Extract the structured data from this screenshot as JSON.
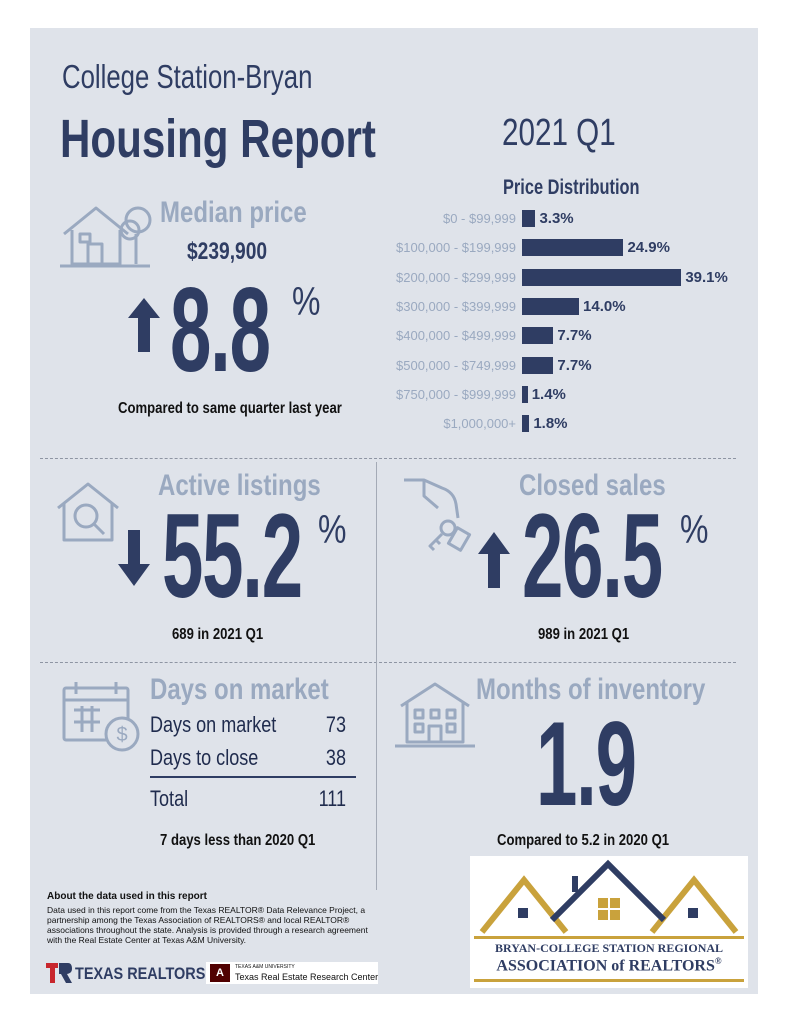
{
  "header": {
    "subtitle": "College Station-Bryan",
    "title": "Housing Report",
    "period": "2021 Q1"
  },
  "median_price": {
    "heading": "Median price",
    "value": "$239,900",
    "direction": "up",
    "change": "8.8",
    "unit": "%",
    "caption": "Compared to same quarter last year"
  },
  "chart_data": {
    "type": "bar",
    "title": "Price Distribution",
    "orientation": "horizontal",
    "categories": [
      "$0 - $99,999",
      "$100,000 - $199,999",
      "$200,000 - $299,999",
      "$300,000 - $399,999",
      "$400,000 - $499,999",
      "$500,000 - $749,999",
      "$750,000 - $999,999",
      "$1,000,000+"
    ],
    "values": [
      3.3,
      24.9,
      39.1,
      14.0,
      7.7,
      7.7,
      1.4,
      1.8
    ],
    "value_labels": [
      "3.3%",
      "24.9%",
      "39.1%",
      "14.0%",
      "7.7%",
      "7.7%",
      "1.4%",
      "1.8%"
    ],
    "xlim": [
      0,
      40
    ],
    "grid": false,
    "bar_color": "#2f3d63"
  },
  "active_listings": {
    "heading": "Active listings",
    "direction": "down",
    "change": "55.2",
    "unit": "%",
    "caption": "689 in 2021 Q1"
  },
  "closed_sales": {
    "heading": "Closed sales",
    "direction": "up",
    "change": "26.5",
    "unit": "%",
    "caption": "989 in 2021 Q1"
  },
  "days_on_market": {
    "heading": "Days on market",
    "rows": [
      {
        "label": "Days on market",
        "value": "73"
      },
      {
        "label": "Days to close",
        "value": "38"
      }
    ],
    "total_label": "Total",
    "total_value": "111",
    "caption": "7 days less than 2020 Q1"
  },
  "months_inventory": {
    "heading": "Months of inventory",
    "value": "1.9",
    "caption": "Compared to 5.2 in 2020 Q1"
  },
  "about": {
    "title": "About the data used in this report",
    "body": "Data used in this report come from the Texas REALTOR® Data Relevance Project, a partnership among the Texas Association of REALTORS® and local REALTOR® associations throughout the state. Analysis is provided through a research agreement with the Real Estate Center at Texas A&M University."
  },
  "footer_logos": {
    "texas_realtors": "TEXAS REALTORS",
    "tamu_small": "TEXAS A&M UNIVERSITY",
    "tamu_center": "Texas Real Estate Research Center",
    "association_line1": "BRYAN-COLLEGE STATION REGIONAL",
    "association_line2": "ASSOCIATION of REALTORS",
    "association_mark": "®"
  },
  "colors": {
    "navy": "#2f3d63",
    "steel": "#9aa9c0",
    "background": "#dfe3ea",
    "gold": "#c9a23c",
    "brand_red": "#c8262d"
  }
}
